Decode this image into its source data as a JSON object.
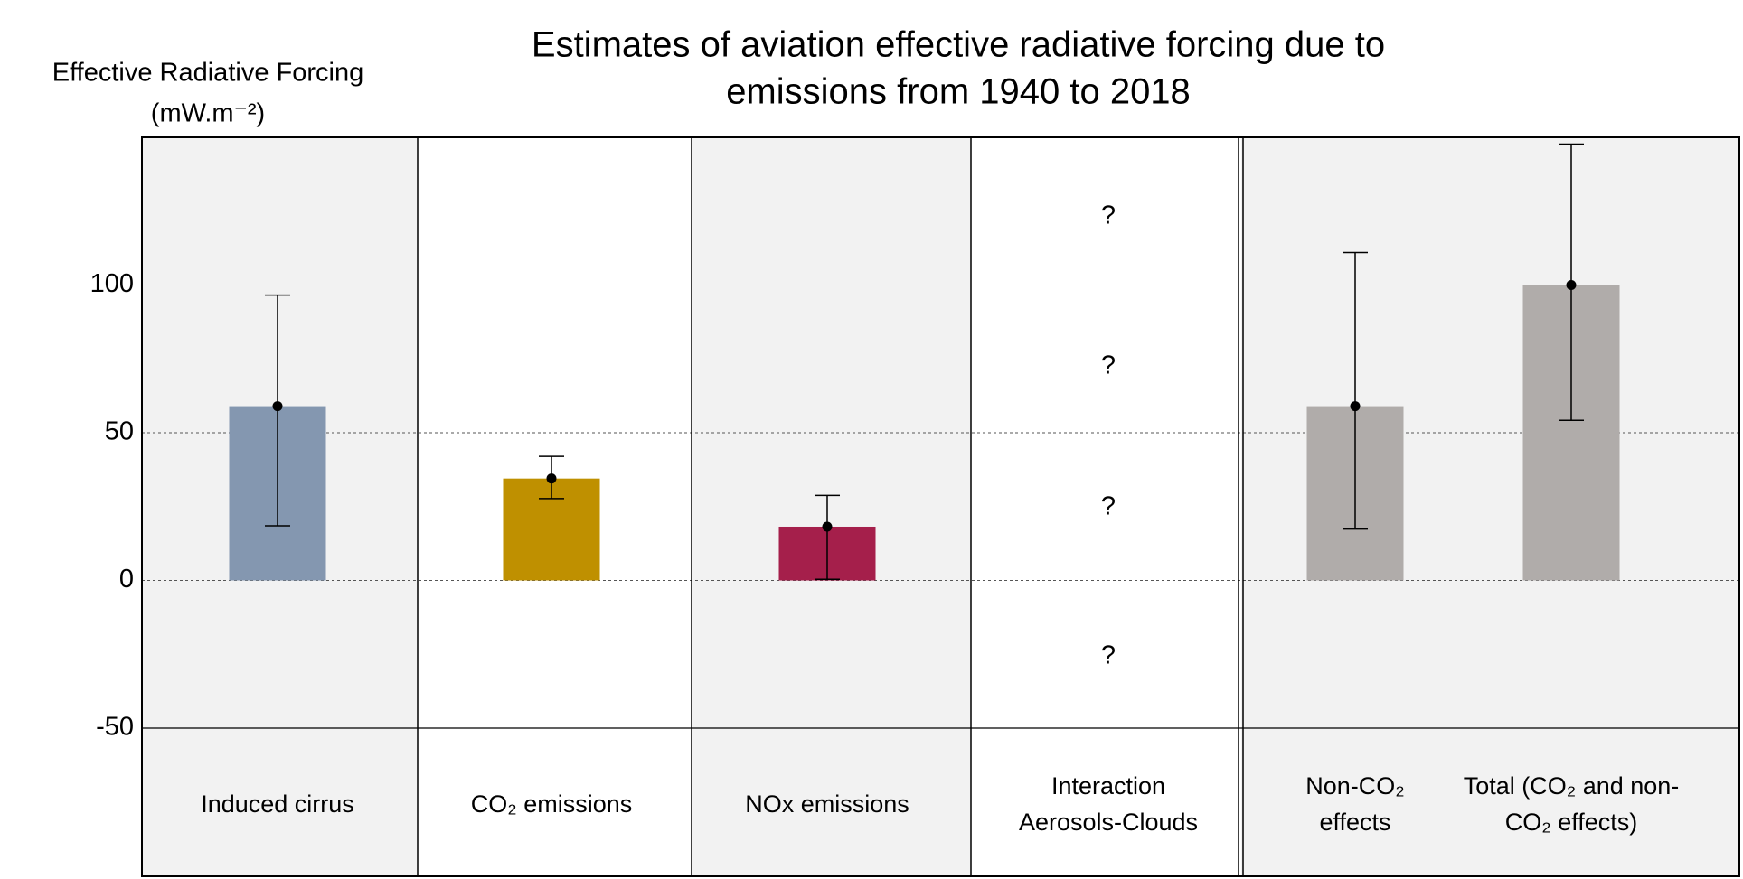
{
  "chart_data": {
    "type": "bar",
    "title": [
      "Estimates of aviation effective radiative forcing due to",
      "emissions from 1940 to 2018"
    ],
    "y_label": [
      "Effective Radiative Forcing",
      "(mW.m⁻²)"
    ],
    "categories": [
      "Induced cirrus",
      "CO₂ emissions",
      "NOx emissions",
      "Interaction Aerosols-Clouds",
      "Non-CO₂ effects",
      "Total (CO₂ and non-CO₂ effects)"
    ],
    "values": [
      59,
      34.5,
      18.2,
      null,
      59,
      100
    ],
    "lower": [
      18.5,
      27.7,
      0.4,
      null,
      17.4,
      54.2
    ],
    "upper": [
      96.6,
      42,
      28.8,
      null,
      111,
      147.7
    ],
    "colors": [
      "#8497b0",
      "#bf9000",
      "#a51f4b",
      null,
      "#b0acaa",
      "#b0acaa"
    ],
    "annotations": [
      "?",
      "?",
      "?",
      "?"
    ],
    "ylim": [
      -50,
      150
    ],
    "yticks": [
      -50,
      0,
      50,
      100
    ],
    "grid": true
  }
}
